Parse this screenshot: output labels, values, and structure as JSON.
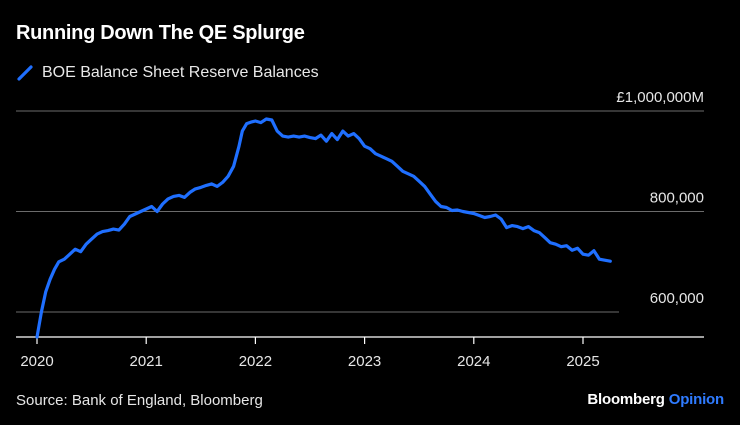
{
  "title": "Running Down The QE Splurge",
  "source": "Source: Bank of England, Bloomberg",
  "brand": {
    "part1": "Bloomberg",
    "part2": "Opinion"
  },
  "colors": {
    "line": "#1f6fff",
    "grid": "#6b6b6b",
    "axis": "#ffffff",
    "brand_accent": "#2f7bff"
  },
  "chart_data": {
    "type": "line",
    "title": "Running Down The QE Splurge",
    "legend": [
      "BOE Balance Sheet Reserve Balances"
    ],
    "ylim": [
      550000,
      1000000
    ],
    "xlim": [
      2020.0,
      2025.9
    ],
    "yticks": [
      {
        "value": 1000000,
        "label": "£1,000,000M"
      },
      {
        "value": 800000,
        "label": "800,000"
      },
      {
        "value": 600000,
        "label": "600,000"
      }
    ],
    "xticks": [
      {
        "value": 2020,
        "label": "2020"
      },
      {
        "value": 2021,
        "label": "2021"
      },
      {
        "value": 2022,
        "label": "2022"
      },
      {
        "value": 2023,
        "label": "2023"
      },
      {
        "value": 2024,
        "label": "2024"
      },
      {
        "value": 2025,
        "label": "2025"
      }
    ],
    "series": [
      {
        "name": "BOE Balance Sheet Reserve Balances",
        "x": [
          2020.0,
          2020.04,
          2020.08,
          2020.12,
          2020.16,
          2020.2,
          2020.25,
          2020.3,
          2020.35,
          2020.4,
          2020.45,
          2020.5,
          2020.55,
          2020.6,
          2020.65,
          2020.7,
          2020.75,
          2020.8,
          2020.85,
          2020.9,
          2020.95,
          2021.0,
          2021.05,
          2021.1,
          2021.15,
          2021.2,
          2021.25,
          2021.3,
          2021.35,
          2021.4,
          2021.45,
          2021.5,
          2021.55,
          2021.6,
          2021.65,
          2021.7,
          2021.75,
          2021.8,
          2021.85,
          2021.88,
          2021.92,
          2021.96,
          2022.0,
          2022.05,
          2022.1,
          2022.15,
          2022.2,
          2022.25,
          2022.3,
          2022.35,
          2022.4,
          2022.45,
          2022.5,
          2022.55,
          2022.6,
          2022.65,
          2022.7,
          2022.75,
          2022.8,
          2022.85,
          2022.9,
          2022.95,
          2023.0,
          2023.05,
          2023.1,
          2023.15,
          2023.2,
          2023.25,
          2023.3,
          2023.35,
          2023.4,
          2023.45,
          2023.5,
          2023.55,
          2023.6,
          2023.65,
          2023.7,
          2023.75,
          2023.8,
          2023.85,
          2023.9,
          2023.95,
          2024.0,
          2024.05,
          2024.1,
          2024.15,
          2024.2,
          2024.25,
          2024.3,
          2024.35,
          2024.4,
          2024.45,
          2024.5,
          2024.55,
          2024.6,
          2024.65,
          2024.7,
          2024.75,
          2024.8,
          2024.85,
          2024.9,
          2024.95,
          2025.0,
          2025.05,
          2025.1,
          2025.15,
          2025.2,
          2025.25
        ],
        "values": [
          550000,
          600000,
          640000,
          665000,
          685000,
          700000,
          705000,
          715000,
          725000,
          720000,
          735000,
          745000,
          755000,
          760000,
          762000,
          765000,
          763000,
          775000,
          790000,
          795000,
          800000,
          805000,
          810000,
          800000,
          815000,
          825000,
          830000,
          832000,
          828000,
          838000,
          845000,
          848000,
          852000,
          855000,
          850000,
          858000,
          870000,
          890000,
          930000,
          960000,
          975000,
          978000,
          980000,
          977000,
          984000,
          982000,
          960000,
          950000,
          948000,
          950000,
          948000,
          950000,
          947000,
          945000,
          952000,
          940000,
          955000,
          943000,
          960000,
          950000,
          955000,
          945000,
          930000,
          925000,
          915000,
          910000,
          905000,
          900000,
          890000,
          880000,
          875000,
          870000,
          860000,
          850000,
          835000,
          820000,
          810000,
          808000,
          802000,
          803000,
          800000,
          798000,
          796000,
          792000,
          788000,
          790000,
          793000,
          785000,
          768000,
          772000,
          770000,
          766000,
          770000,
          762000,
          758000,
          748000,
          738000,
          735000,
          730000,
          732000,
          723000,
          727000,
          715000,
          713000,
          722000,
          705000,
          703000,
          701000
        ]
      }
    ]
  }
}
